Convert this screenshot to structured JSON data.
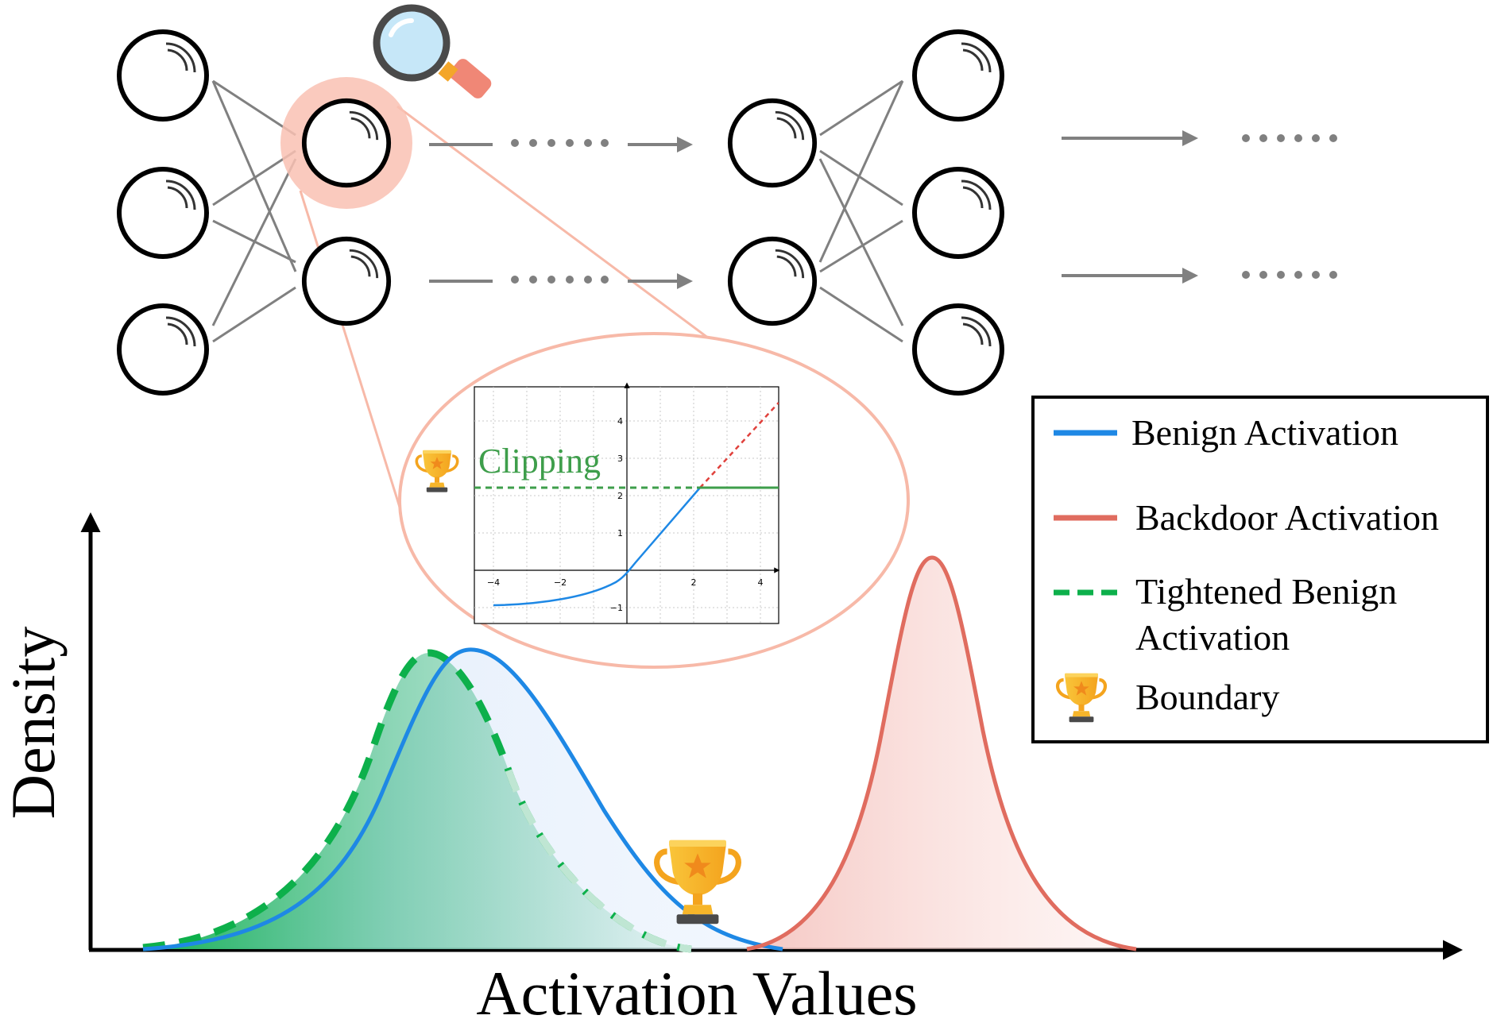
{
  "figure": {
    "x_axis_label": "Activation Values",
    "y_axis_label": "Density",
    "inset_label": "Clipping",
    "legend": [
      {
        "label": "Benign Activation",
        "style": "solid",
        "color": "#1E88E5"
      },
      {
        "label": "Backdoor Activation",
        "style": "solid",
        "color": "#E06C5F"
      },
      {
        "label": "Tightened Benign Activation",
        "style": "dashed",
        "color": "#0DB04B"
      },
      {
        "label": "Boundary",
        "style": "trophy-icon"
      }
    ],
    "colors": {
      "benign": "#1E88E5",
      "backdoor": "#E06C5F",
      "tightened": "#0DB04B",
      "highlight_neuron": "#F9C1B3",
      "zoom_ring": "#F7B9A8",
      "connection": "#808080"
    },
    "inset_plot": {
      "x_ticks": [
        "−4",
        "−2",
        "2",
        "4"
      ],
      "y_ticks": [
        "4",
        "3",
        "2",
        "1",
        "−1"
      ],
      "clip_level": 2.2
    }
  }
}
